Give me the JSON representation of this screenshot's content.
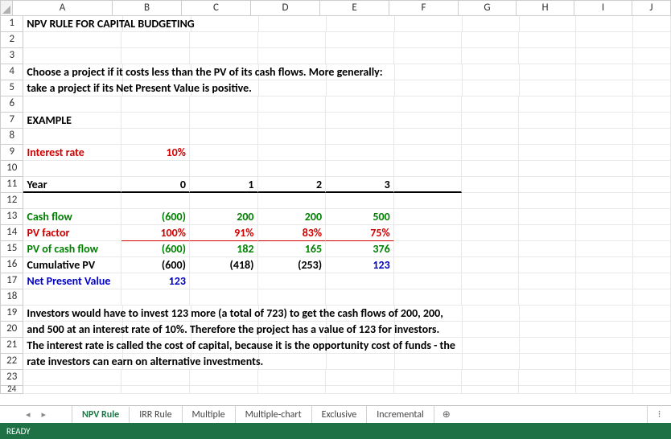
{
  "columns": [
    {
      "letter": "A",
      "widthClass": "colA"
    },
    {
      "letter": "B",
      "widthClass": "colB"
    },
    {
      "letter": "C",
      "widthClass": "colC"
    },
    {
      "letter": "D",
      "widthClass": "colD"
    },
    {
      "letter": "E",
      "widthClass": "colE"
    },
    {
      "letter": "F",
      "widthClass": "colF"
    },
    {
      "letter": "G",
      "widthClass": "colG"
    },
    {
      "letter": "H",
      "widthClass": "colH"
    },
    {
      "letter": "I",
      "widthClass": "colI"
    },
    {
      "letter": "J",
      "widthClass": "colJ"
    }
  ],
  "rowCount": 24,
  "cells": {
    "1": {
      "A": {
        "v": "NPV RULE FOR CAPITAL BUDGETING",
        "cls": "bold of"
      }
    },
    "4": {
      "A": {
        "v": "Choose a project if it costs less than the PV of its cash flows.  More generally:",
        "cls": "bold of"
      }
    },
    "5": {
      "A": {
        "v": "take a project if its Net Present Value is positive.",
        "cls": "bold of"
      }
    },
    "7": {
      "A": {
        "v": "EXAMPLE",
        "cls": "bold"
      }
    },
    "9": {
      "A": {
        "v": "Interest rate",
        "cls": "bold red"
      },
      "B": {
        "v": "10%",
        "cls": "bold red right"
      }
    },
    "11": {
      "A": {
        "v": "Year",
        "cls": "bold thick-bot"
      },
      "B": {
        "v": "0",
        "cls": "bold right thick-bot"
      },
      "C": {
        "v": "1",
        "cls": "bold right thick-bot"
      },
      "D": {
        "v": "2",
        "cls": "bold right thick-bot"
      },
      "E": {
        "v": "3",
        "cls": "bold right thick-bot"
      },
      "F": {
        "v": "",
        "cls": "thick-bot"
      }
    },
    "13": {
      "A": {
        "v": "Cash flow",
        "cls": "bold green"
      },
      "B": {
        "v": "(600)",
        "cls": "bold green right"
      },
      "C": {
        "v": "200",
        "cls": "bold green right"
      },
      "D": {
        "v": "200",
        "cls": "bold green right"
      },
      "E": {
        "v": "500",
        "cls": "bold green right"
      }
    },
    "14": {
      "A": {
        "v": "PV factor",
        "cls": "bold red"
      },
      "B": {
        "v": "100%",
        "cls": "bold red right und-red"
      },
      "C": {
        "v": "91%",
        "cls": "bold red right und-red"
      },
      "D": {
        "v": "83%",
        "cls": "bold red right und-red"
      },
      "E": {
        "v": "75%",
        "cls": "bold red right und-red"
      }
    },
    "15": {
      "A": {
        "v": "PV of cash flow",
        "cls": "bold green"
      },
      "B": {
        "v": "(600)",
        "cls": "bold green right"
      },
      "C": {
        "v": "182",
        "cls": "bold green right"
      },
      "D": {
        "v": "165",
        "cls": "bold green right"
      },
      "E": {
        "v": "376",
        "cls": "bold green right"
      }
    },
    "16": {
      "A": {
        "v": "Cumulative PV",
        "cls": "bold"
      },
      "B": {
        "v": "(600)",
        "cls": "bold right"
      },
      "C": {
        "v": "(418)",
        "cls": "bold right"
      },
      "D": {
        "v": "(253)",
        "cls": "bold right"
      },
      "E": {
        "v": "123",
        "cls": "bold blue right"
      }
    },
    "17": {
      "A": {
        "v": "Net Present Value",
        "cls": "bold blue of"
      },
      "B": {
        "v": "123",
        "cls": "bold blue right"
      }
    },
    "19": {
      "A": {
        "v": "Investors would have to invest 123 more (a total of 723) to get the cash flows of 200, 200,",
        "cls": "bold of"
      }
    },
    "20": {
      "A": {
        "v": "and 500 at an interest rate of 10%.  Therefore the project has a value of 123 for investors.",
        "cls": "bold of"
      }
    },
    "21": {
      "A": {
        "v": "The interest rate is called the cost of capital, because it is the opportunity cost of funds - the",
        "cls": "bold of"
      }
    },
    "22": {
      "A": {
        "v": "rate investors can earn on alternative investments.",
        "cls": "bold of"
      }
    }
  },
  "tabs": {
    "items": [
      {
        "label": "NPV Rule",
        "active": true
      },
      {
        "label": "IRR Rule",
        "active": false
      },
      {
        "label": "Multiple",
        "active": false
      },
      {
        "label": "Multiple-chart",
        "active": false
      },
      {
        "label": "Exclusive",
        "active": false
      },
      {
        "label": "Incremental",
        "active": false
      }
    ],
    "nav_left": "◂",
    "nav_right": "▸",
    "new": "⊕",
    "more": "⁝"
  },
  "status": {
    "ready": "READY"
  },
  "colors": {
    "red": "#d00000",
    "green": "#008000",
    "blue": "#0000c8",
    "status_bg": "#1e7145",
    "grid": "#e8e8e8",
    "hdr_border": "#ccc"
  }
}
